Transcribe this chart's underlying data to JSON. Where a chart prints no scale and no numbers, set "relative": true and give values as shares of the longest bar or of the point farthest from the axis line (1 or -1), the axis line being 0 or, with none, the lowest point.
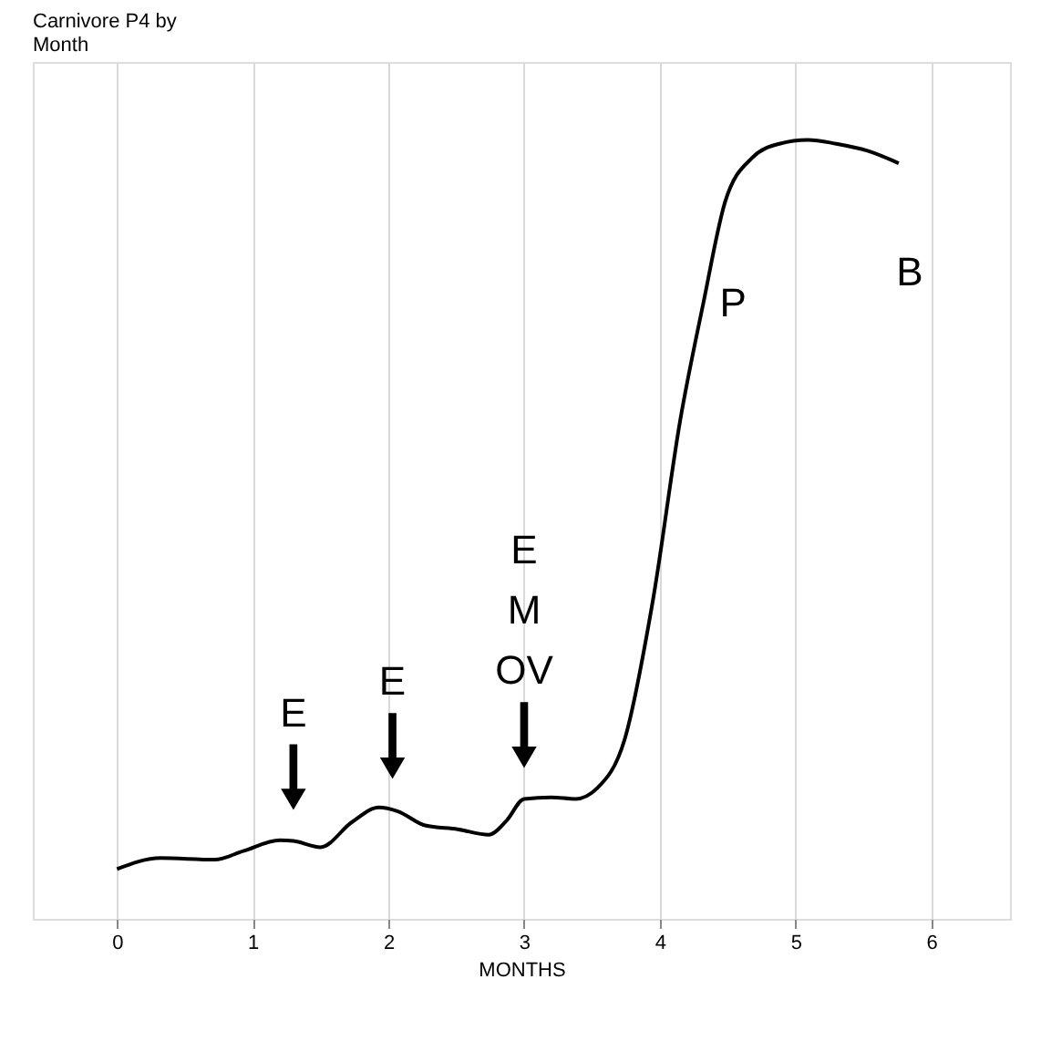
{
  "chart_data": {
    "type": "line",
    "title": "Carnivore P4 by\nMonth",
    "xlabel": "MONTHS",
    "relative": true,
    "color": "#000000",
    "grid": "x",
    "xlim": [
      -0.62,
      6.58
    ],
    "xticks": [
      0,
      1,
      2,
      3,
      4,
      5,
      6
    ],
    "x": [
      0,
      0.32,
      0.72,
      0.93,
      1.2,
      1.3,
      1.5,
      1.73,
      1.93,
      2.07,
      2.27,
      2.51,
      2.74,
      2.87,
      3.0,
      3.2,
      3.38,
      3.54,
      3.74,
      3.95,
      4.15,
      4.32,
      4.48,
      4.68,
      4.88,
      5.09,
      5.3,
      5.53,
      5.76
    ],
    "values": [
      0.064,
      0.078,
      0.076,
      0.087,
      0.101,
      0.1,
      0.092,
      0.124,
      0.143,
      0.138,
      0.12,
      0.115,
      0.108,
      0.126,
      0.154,
      0.156,
      0.154,
      0.168,
      0.23,
      0.41,
      0.64,
      0.79,
      0.92,
      0.977,
      0.995,
      1.0,
      0.995,
      0.986,
      0.97
    ],
    "annotations": [
      {
        "text": "E",
        "x": 1.3,
        "y": 0.1
      },
      {
        "text": "E",
        "x": 2.03,
        "y": 0.14
      },
      {
        "text": "E\nM\nOV",
        "x": 3.0,
        "y": 0.154
      },
      "P",
      "B"
    ]
  }
}
